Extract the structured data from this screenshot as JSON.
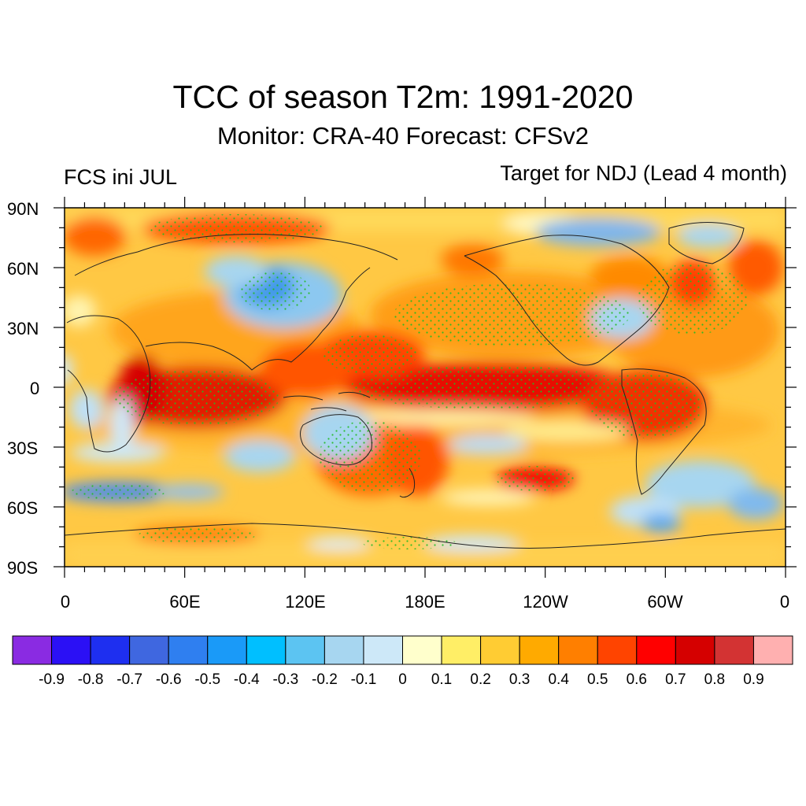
{
  "header": {
    "title": "TCC of season T2m: 1991-2020",
    "subtitle": "Monitor: CRA-40   Forecast: CFSv2",
    "left_label": "FCS ini JUL",
    "right_label": "Target for NDJ (Lead 4 month)"
  },
  "axes": {
    "lat_labels": [
      "90N",
      "60N",
      "30N",
      "0",
      "30S",
      "60S",
      "90S"
    ],
    "lon_labels": [
      "0",
      "60E",
      "120E",
      "180E",
      "120W",
      "60W",
      "0"
    ]
  },
  "colorbar": {
    "colors": [
      "#8A2BE2",
      "#2B10F5",
      "#1E2FF0",
      "#3F67E0",
      "#2F7FF0",
      "#1A9AF8",
      "#00BFFF",
      "#5CC4F2",
      "#A7D6F0",
      "#CDE8F8",
      "#FFFFCC",
      "#FFEE66",
      "#FFCC33",
      "#FFAA00",
      "#FF7F00",
      "#FF4400",
      "#FF0000",
      "#D50000",
      "#D33333",
      "#FFB0B0"
    ],
    "labels": [
      "-0.9",
      "-0.8",
      "-0.7",
      "-0.6",
      "-0.5",
      "-0.4",
      "-0.3",
      "-0.2",
      "-0.1",
      "0",
      "0.1",
      "0.2",
      "0.3",
      "0.4",
      "0.5",
      "0.6",
      "0.7",
      "0.8",
      "0.9"
    ]
  },
  "map": {
    "field": "temporal correlation coefficient (TCC)",
    "projection": "cylindrical equidistant",
    "central_meridian": "180E",
    "stipple_color": "#22bb22",
    "coastline_color": "#222222"
  }
}
